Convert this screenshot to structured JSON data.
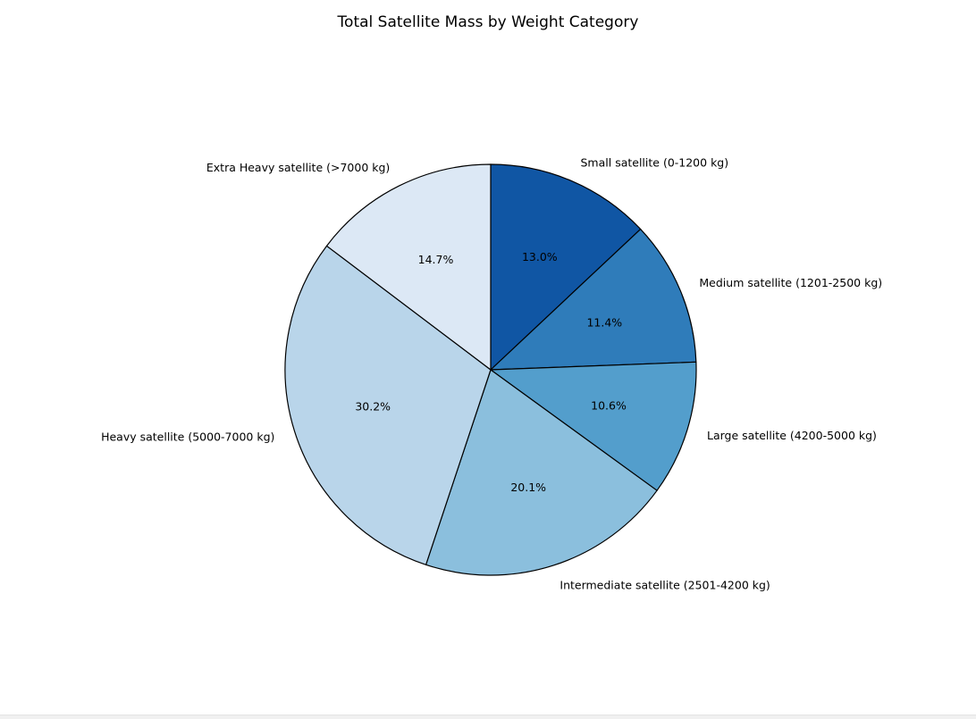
{
  "page": {
    "background": "#ffffff",
    "bottom_strip_color": "#f0f0f0"
  },
  "chart_data": {
    "type": "pie",
    "title": "Total Satellite Mass by Weight Category",
    "start_angle_deg": 90,
    "direction": "clockwise",
    "edge_color": "#000000",
    "pct_distance": 0.6,
    "label_distance": 1.1,
    "slices": [
      {
        "label": "Small satellite (0-1200 kg)",
        "value_pct": 13.0,
        "pct_label": "13.0%",
        "color": "#1056a4"
      },
      {
        "label": "Medium satellite (1201-2500 kg)",
        "value_pct": 11.4,
        "pct_label": "11.4%",
        "color": "#2f7cba"
      },
      {
        "label": "Large satellite (4200-5000 kg)",
        "value_pct": 10.6,
        "pct_label": "10.6%",
        "color": "#539ecc"
      },
      {
        "label": "Intermediate satellite (2501-4200 kg)",
        "value_pct": 20.1,
        "pct_label": "20.1%",
        "color": "#8bbfdd"
      },
      {
        "label": "Heavy satellite (5000-7000 kg)",
        "value_pct": 30.2,
        "pct_label": "30.2%",
        "color": "#b9d5ea"
      },
      {
        "label": "Extra Heavy satellite (>7000 kg)",
        "value_pct": 14.7,
        "pct_label": "14.7%",
        "color": "#dce8f5"
      }
    ]
  }
}
